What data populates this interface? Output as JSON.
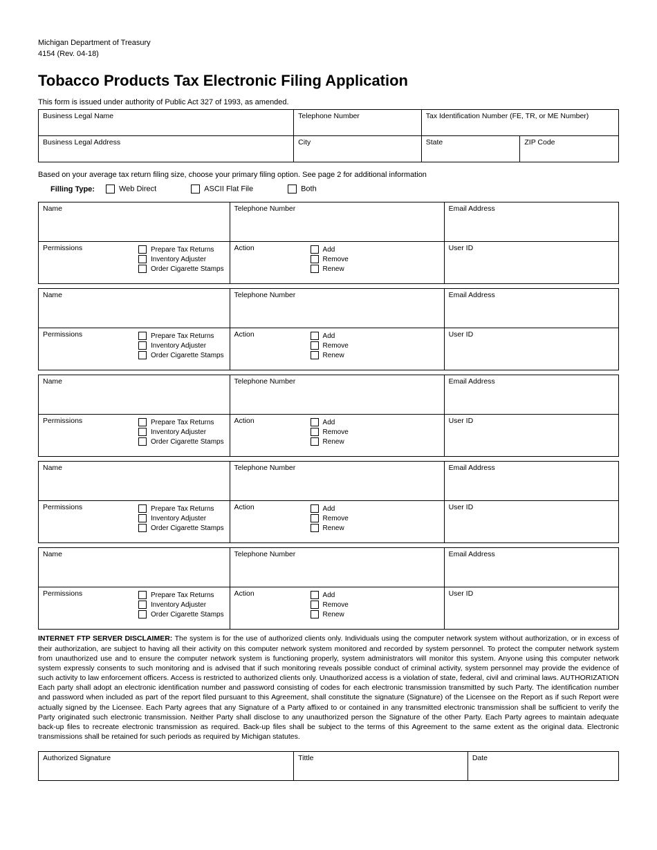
{
  "header": {
    "department": "Michigan Department of Treasury",
    "form_rev": "4154 (Rev. 04-18)"
  },
  "title": "Tobacco Products Tax Electronic Filing Application",
  "authority_text": "This form is issued under authority of Public Act 327 of 1993, as amended.",
  "business_fields": {
    "legal_name": "Business Legal Name",
    "telephone": "Telephone Number",
    "tax_id": "Tax Identification Number (FE, TR, or ME Number)",
    "legal_address": "Business Legal Address",
    "city": "City",
    "state": "State",
    "zip": "ZIP Code"
  },
  "filing_instruction": "Based on your average tax return filing size, choose your primary filing option. See page 2 for additional information",
  "filing_type": {
    "label": "Filling Type:",
    "options": [
      "Web Direct",
      "ASCII Flat File",
      "Both"
    ]
  },
  "user_block_labels": {
    "name": "Name",
    "telephone": "Telephone Number",
    "email": "Email Address",
    "permissions": "Permissions",
    "action": "Action",
    "user_id": "User ID"
  },
  "permissions_options": [
    "Prepare Tax Returns",
    "Inventory Adjuster",
    "Order Cigarette Stamps"
  ],
  "action_options": [
    "Add",
    "Remove",
    "Renew"
  ],
  "user_count": 5,
  "disclaimer": {
    "title": "INTERNET FTP SERVER DISCLAIMER:",
    "body": "The system is for the use of authorized clients only. Individuals using the computer network system without authorization, or in excess of their authorization, are subject to having all their activity on this computer network system monitored and recorded by system personnel. To protect the computer network system from unauthorized use and to ensure the computer network system is functioning properly, system administrators will monitor this system. Anyone using this computer network system expressly consents to such monitoring and is advised that if such monitoring reveals possible conduct of criminal activity, system personnel may provide the evidence of such activity to law enforcement officers. Access is restricted to authorized clients only. Unauthorized access is a violation of state, federal, civil and criminal laws. AUTHORIZATION Each party shall adopt an electronic identification number and password consisting of codes for each electronic transmission transmitted by such Party. The identification number and password when included as part of the report filed pursuant to this Agreement, shall constitute the signature (Signature) of the Licensee on the Report as if such Report were actually signed by the Licensee. Each Party agrees that any Signature of a Party affixed to or contained in any transmitted electronic transmission shall be sufficient to verify the Party originated such electronic transmission. Neither Party shall disclose to any unauthorized person the Signature of the other Party. Each Party agrees to maintain adequate back-up files to recreate electronic transmission as required. Back-up files shall be subject to the terms of this Agreement to the same extent as the original data. Electronic transmissions shall be retained for such periods as required by Michigan statutes."
  },
  "signature_fields": {
    "signature": "Authorized Signature",
    "title": "Tittle",
    "date": "Date"
  }
}
